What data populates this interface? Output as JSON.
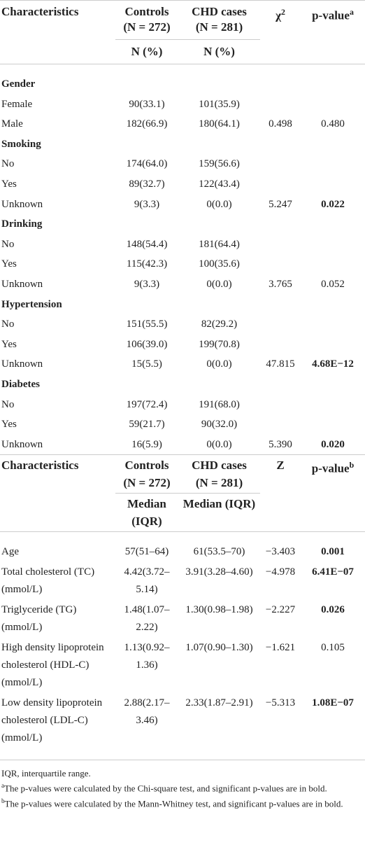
{
  "table1": {
    "columns": [
      {
        "text": "Characteristics"
      },
      {
        "text": "Controls",
        "sub": "(N = 272)"
      },
      {
        "text": "CHD cases",
        "sub": "(N = 281)"
      },
      {
        "text": "χ",
        "sup": "2"
      },
      {
        "text": "p-value",
        "sup": "a"
      }
    ],
    "units": [
      null,
      "N (%)",
      "N (%)",
      null,
      null
    ],
    "groups": [
      {
        "name": "Gender",
        "rows": [
          {
            "cells": [
              "Female",
              "90(33.1)",
              "101(35.9)",
              null,
              null
            ]
          },
          {
            "cells": [
              "Male",
              "182(66.9)",
              "180(64.1)",
              "0.498",
              "0.480"
            ]
          }
        ]
      },
      {
        "name": "Smoking",
        "rows": [
          {
            "cells": [
              "No",
              "174(64.0)",
              "159(56.6)",
              null,
              null
            ]
          },
          {
            "cells": [
              "Yes",
              "89(32.7)",
              "122(43.4)",
              null,
              null
            ]
          },
          {
            "cells": [
              "Unknown",
              "9(3.3)",
              "0(0.0)",
              "5.247",
              "0.022"
            ],
            "bold": true
          }
        ]
      },
      {
        "name": "Drinking",
        "rows": [
          {
            "cells": [
              "No",
              "148(54.4)",
              "181(64.4)",
              null,
              null
            ]
          },
          {
            "cells": [
              "Yes",
              "115(42.3)",
              "100(35.6)",
              null,
              null
            ]
          },
          {
            "cells": [
              "Unknown",
              "9(3.3)",
              "0(0.0)",
              "3.765",
              "0.052"
            ]
          }
        ]
      },
      {
        "name": "Hypertension",
        "rows": [
          {
            "cells": [
              "No",
              "151(55.5)",
              "82(29.2)",
              null,
              null
            ]
          },
          {
            "cells": [
              "Yes",
              "106(39.0)",
              "199(70.8)",
              null,
              null
            ]
          },
          {
            "cells": [
              "Unknown",
              "15(5.5)",
              "0(0.0)",
              "47.815",
              "4.68E−12"
            ],
            "bold": true
          }
        ]
      },
      {
        "name": "Diabetes",
        "rows": [
          {
            "cells": [
              "No",
              "197(72.4)",
              "191(68.0)",
              null,
              null
            ]
          },
          {
            "cells": [
              "Yes",
              "59(21.7)",
              "90(32.0)",
              null,
              null
            ]
          },
          {
            "cells": [
              "Unknown",
              "16(5.9)",
              "0(0.0)",
              "5.390",
              "0.020"
            ],
            "bold": true
          }
        ]
      }
    ]
  },
  "table2": {
    "columns": [
      {
        "text": "Characteristics"
      },
      {
        "text": "Controls",
        "sub": "(N = 272)"
      },
      {
        "text": "CHD cases",
        "sub": "(N = 281)"
      },
      {
        "text": "Z"
      },
      {
        "text": "p-value",
        "sup": "b"
      }
    ],
    "units": [
      null,
      "Median (IQR)",
      "Median (IQR)",
      null,
      null
    ],
    "rows": [
      {
        "cells": [
          "Age",
          "57(51–64)",
          "61(53.5–70)",
          "−3.403",
          "0.001"
        ],
        "bold": true
      },
      {
        "cells": [
          "Total cholesterol (TC) (mmol/L)",
          "4.42(3.72–5.14)",
          "3.91(3.28–4.60)",
          "−4.978",
          "6.41E−07"
        ],
        "bold": true
      },
      {
        "cells": [
          "Triglyceride (TG) (mmol/L)",
          "1.48(1.07–2.22)",
          "1.30(0.98–1.98)",
          "−2.227",
          "0.026"
        ],
        "bold": true
      },
      {
        "cells": [
          "High density lipoprotein cholesterol (HDL-C) (mmol/L)",
          "1.13(0.92–1.36)",
          "1.07(0.90–1.30)",
          "−1.621",
          "0.105"
        ]
      },
      {
        "cells": [
          "Low density lipoprotein cholesterol (LDL-C) (mmol/L)",
          "2.88(2.17–3.46)",
          "2.33(1.87–2.91)",
          "−5.313",
          "1.08E−07"
        ],
        "bold": true
      }
    ]
  },
  "footnotes": [
    {
      "text": "IQR, interquartile range."
    },
    {
      "mark": "a",
      "text": "The p-values were calculated by the Chi-square test, and significant p-values are in bold."
    },
    {
      "mark": "b",
      "text": "The p-values were calculated by the Mann-Whitney test, and significant p-values are in bold."
    }
  ]
}
